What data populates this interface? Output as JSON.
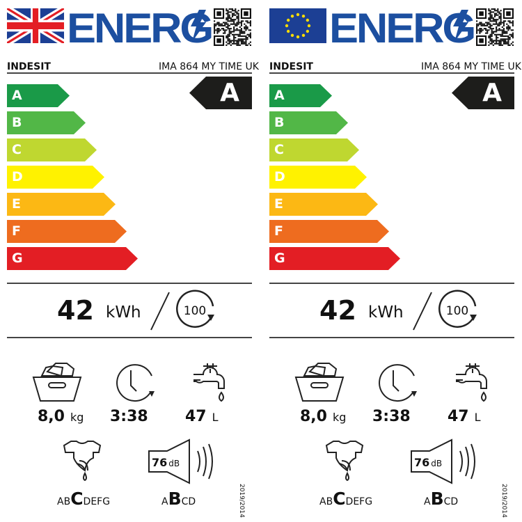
{
  "labels": [
    {
      "region": "UK",
      "flag": "union-jack-flag",
      "title": "ENERG",
      "brand": "INDESIT",
      "model": "IMA 864 MY TIME UK",
      "rating": "A",
      "scale": [
        {
          "letter": "A",
          "color": "#1a9a48"
        },
        {
          "letter": "B",
          "color": "#52b747"
        },
        {
          "letter": "C",
          "color": "#bfd730"
        },
        {
          "letter": "D",
          "color": "#fff200"
        },
        {
          "letter": "E",
          "color": "#fcb814"
        },
        {
          "letter": "F",
          "color": "#ee6c1f"
        },
        {
          "letter": "G",
          "color": "#e31e24"
        }
      ],
      "energy": {
        "value": "42",
        "unit": "kWh",
        "cycles": "100"
      },
      "capacity": {
        "value": "8,0",
        "unit": "kg"
      },
      "duration": {
        "value": "3:38"
      },
      "water": {
        "value": "47",
        "unit": "L"
      },
      "spin": {
        "before": "AB",
        "active": "C",
        "after": "DEFG"
      },
      "noise": {
        "value": "76",
        "unit": "dB",
        "before": "A",
        "active": "B",
        "after": "CD"
      },
      "regulation": "2019/2014"
    },
    {
      "region": "EU",
      "flag": "eu-flag",
      "title": "ENERG",
      "brand": "INDESIT",
      "model": "IMA 864 MY TIME UK",
      "rating": "A",
      "scale": [
        {
          "letter": "A",
          "color": "#1a9a48"
        },
        {
          "letter": "B",
          "color": "#52b747"
        },
        {
          "letter": "C",
          "color": "#bfd730"
        },
        {
          "letter": "D",
          "color": "#fff200"
        },
        {
          "letter": "E",
          "color": "#fcb814"
        },
        {
          "letter": "F",
          "color": "#ee6c1f"
        },
        {
          "letter": "G",
          "color": "#e31e24"
        }
      ],
      "energy": {
        "value": "42",
        "unit": "kWh",
        "cycles": "100"
      },
      "capacity": {
        "value": "8,0",
        "unit": "kg"
      },
      "duration": {
        "value": "3:38"
      },
      "water": {
        "value": "47",
        "unit": "L"
      },
      "spin": {
        "before": "AB",
        "active": "C",
        "after": "DEFG"
      },
      "noise": {
        "value": "76",
        "unit": "dB",
        "before": "A",
        "active": "B",
        "after": "CD"
      },
      "regulation": "2019/2014"
    }
  ]
}
